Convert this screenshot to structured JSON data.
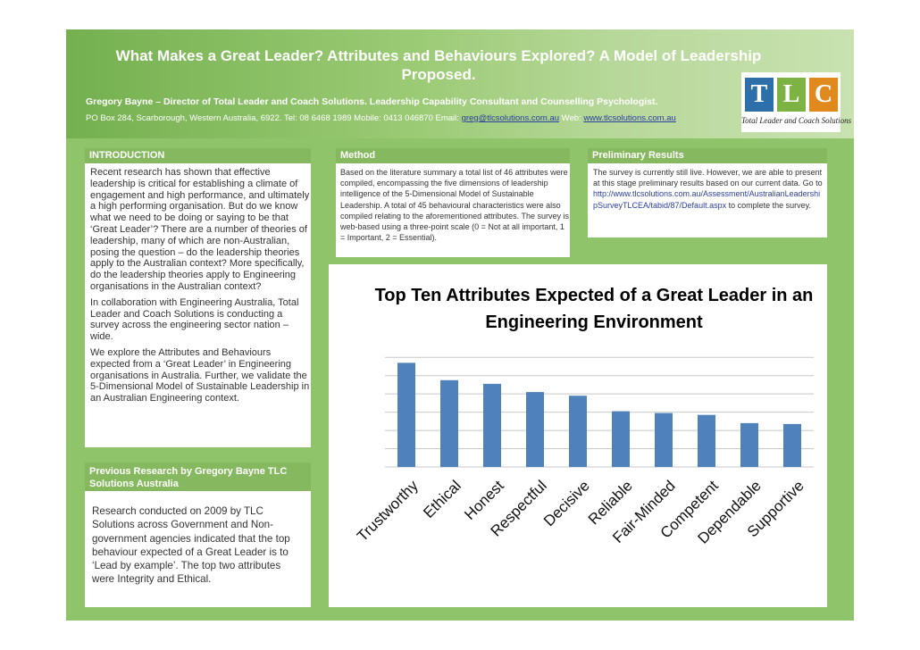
{
  "header": {
    "title": "What Makes a Great Leader? Attributes and Behaviours Explored? A Model of Leadership Proposed.",
    "author": "Gregory Bayne – Director of Total Leader and Coach Solutions. Leadership Capability Consultant and Counselling Psychologist.",
    "address_prefix": "PO Box 284, Scarborough, Western Australia, 6922. Tel: 08 6468 1989 Mobile: 0413 046870 Email:",
    "email": "greg@tlcsolutions.com.au",
    "web_label": "Web:",
    "web": "www.tlcsolutions.com.au"
  },
  "logo": {
    "letters": [
      "T",
      "L",
      "C"
    ],
    "tile_colors": [
      "#2d6fa8",
      "#7cb342",
      "#e08a1e"
    ],
    "caption": "Total Leader and Coach Solutions"
  },
  "introduction": {
    "heading": "INTRODUCTION",
    "paragraphs": [
      "Recent research has shown that effective leadership is critical for establishing a climate of engagement and high performance, and ultimately a high performing organisation.  But do we know what we need to be doing or saying to be that ‘Great Leader’? There are a number of theories of leadership, many of which are non-Australian, posing the question – do the leadership theories apply to the Australian context? More specifically, do the leadership theories apply to Engineering organisations in the Australian context?",
      "In collaboration with Engineering Australia, Total Leader and Coach Solutions is conducting a survey across the engineering sector nation –wide.",
      "We explore the Attributes and Behaviours expected from a ‘Great Leader’ in Engineering organisations in Australia. Further, we validate the 5-Dimensional Model of Sustainable Leadership in an Australian Engineering context."
    ]
  },
  "previous_research": {
    "heading": "Previous Research by Gregory Bayne TLC Solutions Australia",
    "text": "Research conducted on 2009 by TLC Solutions across Government and Non-government agencies indicated that the top behaviour expected of a Great Leader is to ‘Lead by example’.  The top two attributes were Integrity and Ethical."
  },
  "method": {
    "heading": "Method",
    "text": "Based on the literature summary a total list of 46 attributes were compiled, encompassing the five dimensions of leadership intelligence of the 5-Dimensional Model of Sustainable Leadership. A total of 45 behavioural characteristics were also compiled relating to the aforementioned attributes. The survey is web-based using a three-point scale (0 = Not at all important, 1 = Important, 2 = Essential)."
  },
  "preliminary": {
    "heading": "Preliminary Results",
    "text": "The survey is currently still live.  However, we are able to present at this stage preliminary results based on our current data. Go to",
    "link": "http://www.tlcsolutions.com.au/Assessment/AustralianLeadershipSurveyTLCEA/tabid/87/Default.aspx",
    "text_after": " to complete the survey."
  },
  "chart_data": {
    "type": "bar",
    "title": "Top Ten Attributes Expected of a Great Leader in an Engineering Environment",
    "categories": [
      "Trustworthy",
      "Ethical",
      "Honest",
      "Respectful",
      "Decisive",
      "Reliable",
      "Fair-Minded",
      "Competent",
      "Dependable",
      "Supportive"
    ],
    "values": [
      5.7,
      4.75,
      4.55,
      4.1,
      3.9,
      3.05,
      2.95,
      2.85,
      2.4,
      2.35
    ],
    "ylim": [
      0,
      6.5
    ],
    "gridlines": true,
    "bar_color": "#4f81bd"
  }
}
